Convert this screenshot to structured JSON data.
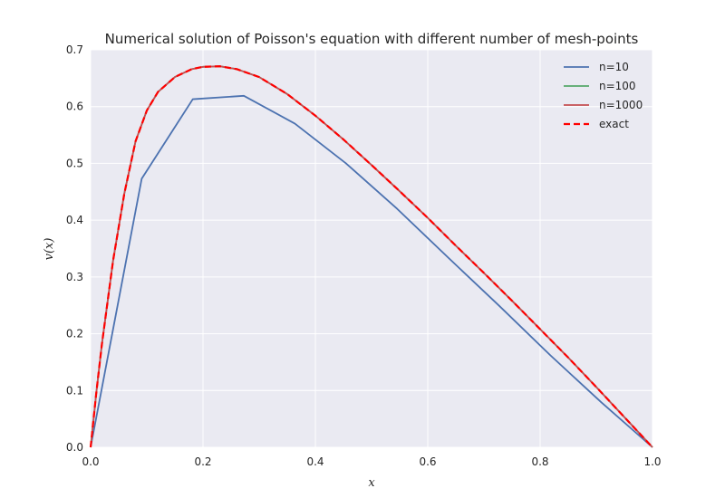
{
  "chart_data": {
    "type": "line",
    "title": "Numerical solution of Poisson's equation with different number of mesh-points",
    "xlabel": "x",
    "ylabel": "v(x)",
    "xlim": [
      0,
      1
    ],
    "ylim": [
      0,
      0.7
    ],
    "xticks": [
      "0.0",
      "0.2",
      "0.4",
      "0.6",
      "0.8",
      "1.0"
    ],
    "yticks": [
      "0.0",
      "0.1",
      "0.2",
      "0.3",
      "0.4",
      "0.5",
      "0.6",
      "0.7"
    ],
    "grid": true,
    "background": "#eaeaf2",
    "legend_position": "top-right",
    "series": [
      {
        "name": "n=10",
        "color": "#4c72b0",
        "style": "solid",
        "x": [
          0,
          0.0909,
          0.1818,
          0.2727,
          0.3636,
          0.4545,
          0.5455,
          0.6364,
          0.7273,
          0.8182,
          0.9091,
          1.0
        ],
        "y": [
          0,
          0.473,
          0.613,
          0.619,
          0.57,
          0.5,
          0.42,
          0.334,
          0.249,
          0.162,
          0.079,
          0
        ]
      },
      {
        "name": "n=100",
        "color": "#55a868",
        "style": "solid",
        "x": [
          0,
          0.01,
          0.02,
          0.04,
          0.06,
          0.08,
          0.1,
          0.12,
          0.15,
          0.18,
          0.2,
          0.23,
          0.26,
          0.3,
          0.35,
          0.4,
          0.45,
          0.5,
          0.55,
          0.6,
          0.65,
          0.7,
          0.75,
          0.8,
          0.85,
          0.9,
          0.95,
          1.0
        ],
        "y": [
          0,
          0.095,
          0.181,
          0.329,
          0.447,
          0.539,
          0.593,
          0.626,
          0.652,
          0.666,
          0.67,
          0.671,
          0.666,
          0.652,
          0.622,
          0.584,
          0.542,
          0.497,
          0.451,
          0.404,
          0.355,
          0.307,
          0.258,
          0.208,
          0.158,
          0.106,
          0.053,
          0
        ]
      },
      {
        "name": "n=1000",
        "color": "#c44e52",
        "style": "solid",
        "x": [
          0,
          0.01,
          0.02,
          0.04,
          0.06,
          0.08,
          0.1,
          0.12,
          0.15,
          0.18,
          0.2,
          0.23,
          0.26,
          0.3,
          0.35,
          0.4,
          0.45,
          0.5,
          0.55,
          0.6,
          0.65,
          0.7,
          0.75,
          0.8,
          0.85,
          0.9,
          0.95,
          1.0
        ],
        "y": [
          0,
          0.095,
          0.181,
          0.329,
          0.447,
          0.539,
          0.593,
          0.626,
          0.652,
          0.666,
          0.67,
          0.671,
          0.666,
          0.652,
          0.622,
          0.584,
          0.542,
          0.497,
          0.451,
          0.404,
          0.355,
          0.307,
          0.258,
          0.208,
          0.158,
          0.106,
          0.053,
          0
        ]
      },
      {
        "name": "exact",
        "color": "#ff0000",
        "style": "dashed",
        "x": [
          0,
          0.01,
          0.02,
          0.04,
          0.06,
          0.08,
          0.1,
          0.12,
          0.15,
          0.18,
          0.2,
          0.23,
          0.26,
          0.3,
          0.35,
          0.4,
          0.45,
          0.5,
          0.55,
          0.6,
          0.65,
          0.7,
          0.75,
          0.8,
          0.85,
          0.9,
          0.95,
          1.0
        ],
        "y": [
          0,
          0.095,
          0.181,
          0.329,
          0.447,
          0.539,
          0.593,
          0.626,
          0.652,
          0.666,
          0.67,
          0.671,
          0.666,
          0.652,
          0.622,
          0.584,
          0.542,
          0.497,
          0.451,
          0.404,
          0.355,
          0.307,
          0.258,
          0.208,
          0.158,
          0.106,
          0.053,
          0
        ]
      }
    ]
  }
}
